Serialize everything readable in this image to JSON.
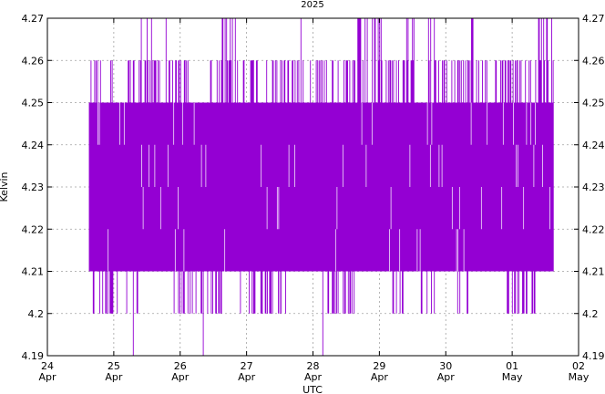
{
  "chart_data": {
    "type": "line",
    "title": "2025",
    "xlabel": "UTC",
    "ylabel": "Kelvin",
    "ylim": [
      4.19,
      4.27
    ],
    "xlim": [
      "2025-04-24",
      "2025-05-02"
    ],
    "grid": true,
    "y_ticks": [
      "4.19",
      "4.2",
      "4.21",
      "4.22",
      "4.23",
      "4.24",
      "4.25",
      "4.26",
      "4.27"
    ],
    "x_ticks": [
      {
        "day": "24",
        "month": "Apr",
        "date": "2025-04-24"
      },
      {
        "day": "25",
        "month": "Apr",
        "date": "2025-04-25"
      },
      {
        "day": "26",
        "month": "Apr",
        "date": "2025-04-26"
      },
      {
        "day": "27",
        "month": "Apr",
        "date": "2025-04-27"
      },
      {
        "day": "28",
        "month": "Apr",
        "date": "2025-04-28"
      },
      {
        "day": "29",
        "month": "Apr",
        "date": "2025-04-29"
      },
      {
        "day": "30",
        "month": "Apr",
        "date": "2025-04-30"
      },
      {
        "day": "01",
        "month": "May",
        "date": "2025-05-01"
      },
      {
        "day": "02",
        "month": "May",
        "date": "2025-05-02"
      }
    ],
    "series": [
      {
        "color": "#9400d3",
        "data_range": [
          "2025-04-24T15:00",
          "2025-05-01T15:00"
        ],
        "segments": [
          {
            "x": "2025-04-24T15:00",
            "ymin": 4.2,
            "ymax": 4.26
          },
          {
            "x": "2025-04-24T21:00",
            "ymin": 4.2,
            "ymax": 4.26
          },
          {
            "x": "2025-04-25T03:00",
            "ymin": 4.2,
            "ymax": 4.25
          },
          {
            "x": "2025-04-25T07:00",
            "ymin": 4.19,
            "ymax": 4.26
          },
          {
            "x": "2025-04-25T12:00",
            "ymin": 4.21,
            "ymax": 4.27
          },
          {
            "x": "2025-04-25T18:00",
            "ymin": 4.21,
            "ymax": 4.27
          },
          {
            "x": "2025-04-26T00:00",
            "ymin": 4.2,
            "ymax": 4.26
          },
          {
            "x": "2025-04-26T06:00",
            "ymin": 4.19,
            "ymax": 4.25
          },
          {
            "x": "2025-04-26T12:00",
            "ymin": 4.2,
            "ymax": 4.26
          },
          {
            "x": "2025-04-26T18:00",
            "ymin": 4.21,
            "ymax": 4.27
          },
          {
            "x": "2025-04-27T00:00",
            "ymin": 4.2,
            "ymax": 4.27
          },
          {
            "x": "2025-04-27T06:00",
            "ymin": 4.2,
            "ymax": 4.26
          },
          {
            "x": "2025-04-27T12:00",
            "ymin": 4.2,
            "ymax": 4.26
          },
          {
            "x": "2025-04-27T18:00",
            "ymin": 4.21,
            "ymax": 4.27
          },
          {
            "x": "2025-04-28T00:00",
            "ymin": 4.21,
            "ymax": 4.26
          },
          {
            "x": "2025-04-28T06:00",
            "ymin": 4.19,
            "ymax": 4.26
          },
          {
            "x": "2025-04-28T12:00",
            "ymin": 4.2,
            "ymax": 4.26
          },
          {
            "x": "2025-04-28T18:00",
            "ymin": 4.21,
            "ymax": 4.27
          },
          {
            "x": "2025-04-29T00:00",
            "ymin": 4.21,
            "ymax": 4.27
          },
          {
            "x": "2025-04-29T06:00",
            "ymin": 4.2,
            "ymax": 4.26
          },
          {
            "x": "2025-04-29T12:00",
            "ymin": 4.21,
            "ymax": 4.27
          },
          {
            "x": "2025-04-29T18:00",
            "ymin": 4.2,
            "ymax": 4.27
          },
          {
            "x": "2025-04-30T00:00",
            "ymin": 4.21,
            "ymax": 4.26
          },
          {
            "x": "2025-04-30T06:00",
            "ymin": 4.2,
            "ymax": 4.26
          },
          {
            "x": "2025-04-30T12:00",
            "ymin": 4.21,
            "ymax": 4.27
          },
          {
            "x": "2025-04-30T18:00",
            "ymin": 4.21,
            "ymax": 4.26
          },
          {
            "x": "2025-05-01T00:00",
            "ymin": 4.2,
            "ymax": 4.26
          },
          {
            "x": "2025-05-01T06:00",
            "ymin": 4.2,
            "ymax": 4.26
          },
          {
            "x": "2025-05-01T12:00",
            "ymin": 4.21,
            "ymax": 4.27
          }
        ]
      }
    ]
  }
}
